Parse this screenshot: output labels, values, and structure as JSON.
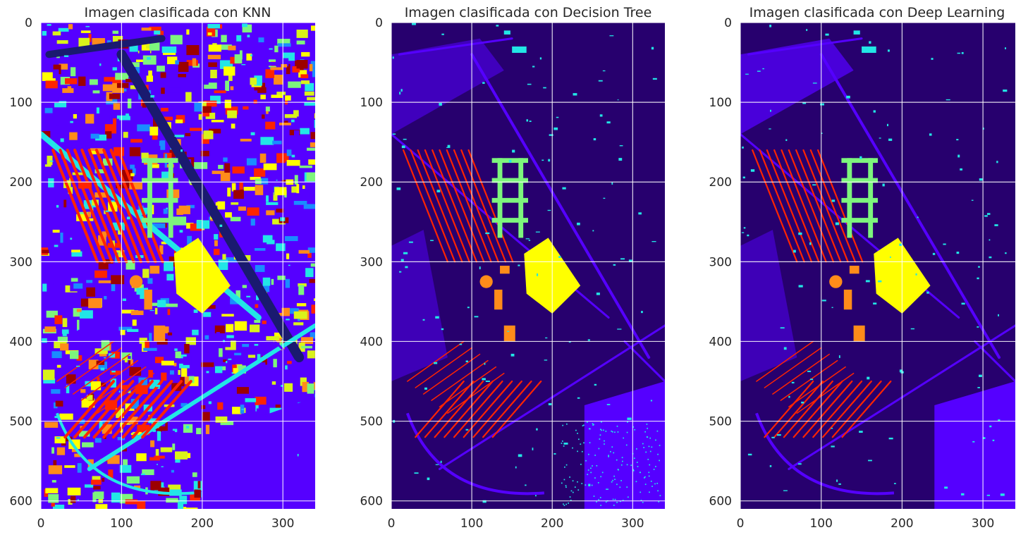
{
  "chart_data": [
    {
      "type": "heatmap",
      "title": "Imagen clasificada con KNN",
      "xlabel": "",
      "ylabel": "",
      "xlim": [
        0,
        340
      ],
      "ylim": [
        610,
        0
      ],
      "x_ticks": [
        "0",
        "100",
        "200",
        "300"
      ],
      "y_ticks": [
        "0",
        "100",
        "200",
        "300",
        "400",
        "500",
        "600"
      ],
      "grid": true,
      "colormap": "jet",
      "colors": {
        "background": "#5500ff",
        "classes": [
          "#5500ff",
          "#1a8cff",
          "#22e6e6",
          "#7df57d",
          "#d9f21a",
          "#ffff00",
          "#ff8c1a",
          "#ff2400",
          "#9c0000"
        ]
      }
    },
    {
      "type": "heatmap",
      "title": "Imagen clasificada con Decision Tree",
      "xlabel": "",
      "ylabel": "",
      "xlim": [
        0,
        340
      ],
      "ylim": [
        610,
        0
      ],
      "x_ticks": [
        "0",
        "100",
        "200",
        "300"
      ],
      "y_ticks": [
        "0",
        "100",
        "200",
        "300",
        "400",
        "500",
        "600"
      ],
      "grid": true,
      "colormap": "jet",
      "colors": {
        "background": "#27006e",
        "classes": [
          "#5500ff",
          "#22e6e6",
          "#7df57d",
          "#ffff00",
          "#ff8c1a",
          "#ff2400"
        ]
      }
    },
    {
      "type": "heatmap",
      "title": "Imagen clasificada con Deep Learning",
      "xlabel": "",
      "ylabel": "",
      "xlim": [
        0,
        340
      ],
      "ylim": [
        610,
        0
      ],
      "x_ticks": [
        "0",
        "100",
        "200",
        "300"
      ],
      "y_ticks": [
        "0",
        "100",
        "200",
        "300",
        "400",
        "500",
        "600"
      ],
      "grid": true,
      "colormap": "jet",
      "colors": {
        "background": "#27006e",
        "classes": [
          "#5500ff",
          "#22e6e6",
          "#7df57d",
          "#ffff00",
          "#ff8c1a",
          "#ff2400"
        ]
      }
    }
  ]
}
